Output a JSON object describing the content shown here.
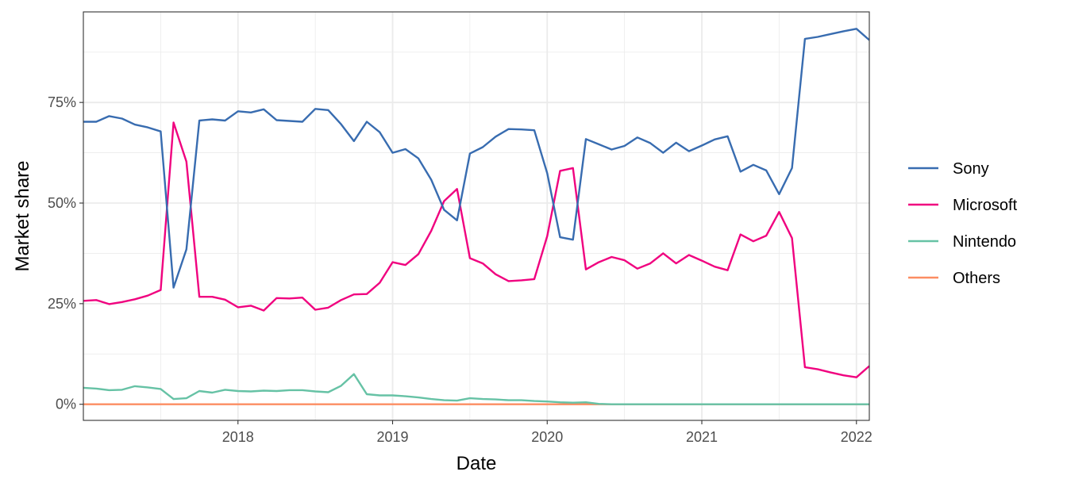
{
  "chart_data": {
    "type": "line",
    "title": "",
    "xlabel": "Date",
    "ylabel": "Market share",
    "x_ticks": [
      "2018",
      "2019",
      "2020",
      "2021",
      "2022"
    ],
    "y_ticks": [
      "0%",
      "25%",
      "50%",
      "75%"
    ],
    "ylim": [
      -0.04,
      0.975
    ],
    "xlim": [
      "2017-01-01",
      "2022-02-01"
    ],
    "grid": true,
    "legend_position": "right",
    "x": [
      "2017-01",
      "2017-02",
      "2017-03",
      "2017-04",
      "2017-05",
      "2017-06",
      "2017-07",
      "2017-08",
      "2017-09",
      "2017-10",
      "2017-11",
      "2017-12",
      "2018-01",
      "2018-02",
      "2018-03",
      "2018-04",
      "2018-05",
      "2018-06",
      "2018-07",
      "2018-08",
      "2018-09",
      "2018-10",
      "2018-11",
      "2018-12",
      "2019-01",
      "2019-02",
      "2019-03",
      "2019-04",
      "2019-05",
      "2019-06",
      "2019-07",
      "2019-08",
      "2019-09",
      "2019-10",
      "2019-11",
      "2019-12",
      "2020-01",
      "2020-02",
      "2020-03",
      "2020-04",
      "2020-05",
      "2020-06",
      "2020-07",
      "2020-08",
      "2020-09",
      "2020-10",
      "2020-11",
      "2020-12",
      "2021-01",
      "2021-02",
      "2021-03",
      "2021-04",
      "2021-05",
      "2021-06",
      "2021-07",
      "2021-08",
      "2021-09",
      "2021-10",
      "2021-11",
      "2021-12",
      "2022-01",
      "2022-02"
    ],
    "series": [
      {
        "name": "Sony",
        "color": "#386cb0",
        "values": [
          0.702,
          0.702,
          0.716,
          0.71,
          0.695,
          0.688,
          0.678,
          0.29,
          0.385,
          0.705,
          0.708,
          0.705,
          0.728,
          0.725,
          0.733,
          0.706,
          0.704,
          0.702,
          0.734,
          0.731,
          0.696,
          0.654,
          0.702,
          0.676,
          0.625,
          0.634,
          0.611,
          0.558,
          0.483,
          0.457,
          0.623,
          0.639,
          0.665,
          0.684,
          0.683,
          0.681,
          0.574,
          0.415,
          0.409,
          0.659,
          0.646,
          0.633,
          0.642,
          0.663,
          0.649,
          0.625,
          0.65,
          0.629,
          0.643,
          0.658,
          0.666,
          0.578,
          0.595,
          0.581,
          0.522,
          0.587,
          0.908,
          0.913,
          0.92,
          0.927,
          0.933,
          0.905
        ]
      },
      {
        "name": "Microsoft",
        "color": "#f0027f",
        "values": [
          0.257,
          0.259,
          0.249,
          0.254,
          0.261,
          0.27,
          0.284,
          0.7,
          0.603,
          0.267,
          0.267,
          0.26,
          0.241,
          0.245,
          0.233,
          0.264,
          0.263,
          0.265,
          0.235,
          0.24,
          0.259,
          0.273,
          0.274,
          0.302,
          0.353,
          0.346,
          0.373,
          0.431,
          0.505,
          0.535,
          0.363,
          0.35,
          0.323,
          0.306,
          0.308,
          0.311,
          0.418,
          0.58,
          0.587,
          0.335,
          0.353,
          0.366,
          0.358,
          0.337,
          0.35,
          0.375,
          0.35,
          0.371,
          0.357,
          0.342,
          0.333,
          0.422,
          0.405,
          0.419,
          0.478,
          0.413,
          0.092,
          0.087,
          0.079,
          0.072,
          0.067,
          0.095
        ]
      },
      {
        "name": "Nintendo",
        "color": "#66c2a5",
        "values": [
          0.041,
          0.039,
          0.035,
          0.036,
          0.045,
          0.042,
          0.038,
          0.013,
          0.015,
          0.033,
          0.029,
          0.036,
          0.033,
          0.032,
          0.034,
          0.033,
          0.035,
          0.035,
          0.032,
          0.03,
          0.046,
          0.075,
          0.025,
          0.022,
          0.022,
          0.02,
          0.017,
          0.013,
          0.01,
          0.009,
          0.015,
          0.013,
          0.012,
          0.01,
          0.01,
          0.008,
          0.007,
          0.005,
          0.004,
          0.005,
          0.001,
          0,
          0,
          0,
          0,
          0,
          0,
          0,
          0,
          0,
          0,
          0,
          0,
          0,
          0,
          0,
          0,
          0,
          0,
          0,
          0,
          0
        ]
      },
      {
        "name": "Others",
        "color": "#fc8d62",
        "values": [
          0,
          0,
          0,
          0,
          0,
          0,
          0,
          0,
          0,
          0,
          0,
          0,
          0,
          0,
          0,
          0,
          0,
          0,
          0,
          0,
          0,
          0,
          0,
          0,
          0,
          0,
          0,
          0,
          0,
          0,
          0,
          0,
          0,
          0,
          0,
          0,
          0,
          0,
          0,
          0,
          0,
          0,
          0,
          0,
          0,
          0,
          0,
          0,
          0,
          0,
          0,
          0,
          0,
          0,
          0,
          0,
          0,
          0,
          0,
          0,
          0,
          0
        ]
      }
    ]
  }
}
